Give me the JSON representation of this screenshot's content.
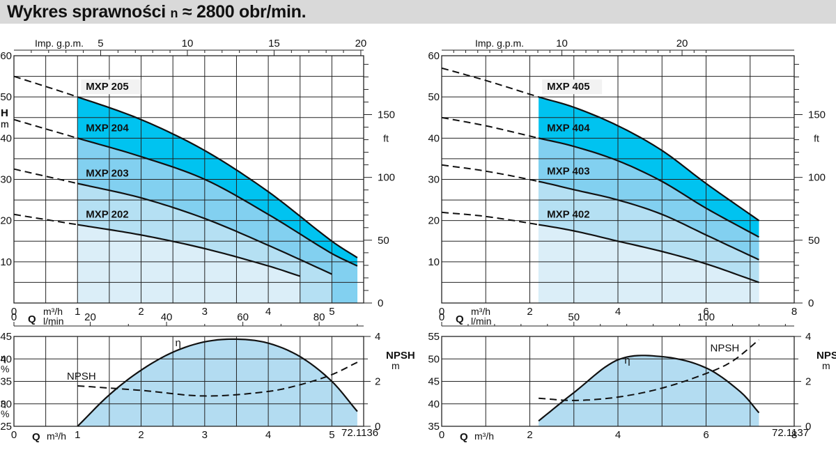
{
  "title": {
    "main": "Wykres sprawności",
    "n": "n",
    "rest": "≈ 2800 obr/min."
  },
  "colors": {
    "band_light": "#dbeef8",
    "band_2": "#b5e0f3",
    "band_3": "#82d0f0",
    "band_top": "#00c3f0",
    "eff_fill": "#b3dcf1",
    "grid": "#222222"
  },
  "chart_data": [
    {
      "id": "left_head",
      "type": "area",
      "series_kind": "head",
      "x_label": "Q",
      "x_unit": "m³/h",
      "xlim": [
        0,
        5.5
      ],
      "x_ticks": [
        0,
        1,
        2,
        3,
        4,
        5
      ],
      "x_grid": 0.5,
      "y_label": "H",
      "y_unit": "m",
      "ylim": [
        0,
        60
      ],
      "y_ticks": [
        10,
        20,
        30,
        40,
        50,
        60
      ],
      "y_tick_labels": [
        "10",
        "20",
        "30",
        "40",
        "50",
        "60"
      ],
      "y_grid": 5,
      "right_unit": "ft",
      "right_ticks": [
        0,
        50,
        100,
        150
      ],
      "top_unit": "Imp. g.p.m.",
      "top_ticks": [
        5,
        10,
        15,
        20
      ],
      "lpm_unit": "l/min",
      "lpm_ticks": [
        0,
        20,
        40,
        60,
        80
      ],
      "range_start": 1.0,
      "series": [
        {
          "name": "MXP 202",
          "x_end": 4.5,
          "points": [
            [
              0,
              21.5
            ],
            [
              1,
              19
            ],
            [
              2,
              16.5
            ],
            [
              3,
              13.2
            ],
            [
              4,
              9
            ],
            [
              4.5,
              6.5
            ]
          ]
        },
        {
          "name": "MXP 203",
          "x_end": 5.0,
          "points": [
            [
              0,
              32.5
            ],
            [
              1,
              29
            ],
            [
              2,
              25.5
            ],
            [
              3,
              20.5
            ],
            [
              4,
              14
            ],
            [
              5,
              7
            ]
          ]
        },
        {
          "name": "MXP 204",
          "x_end": 5.4,
          "points": [
            [
              0,
              44.5
            ],
            [
              1,
              40
            ],
            [
              2,
              35.5
            ],
            [
              3,
              30
            ],
            [
              4,
              21.5
            ],
            [
              5,
              12
            ],
            [
              5.4,
              9
            ]
          ]
        },
        {
          "name": "MXP 205",
          "x_end": 5.4,
          "points": [
            [
              0,
              55
            ],
            [
              1,
              50
            ],
            [
              2,
              44.5
            ],
            [
              3,
              37
            ],
            [
              4,
              27
            ],
            [
              5,
              15
            ],
            [
              5.4,
              11
            ]
          ]
        }
      ]
    },
    {
      "id": "right_head",
      "type": "area",
      "series_kind": "head",
      "x_label": "Q",
      "x_unit": "m³/h",
      "xlim": [
        0,
        8
      ],
      "x_ticks": [
        0,
        2,
        4,
        6,
        8
      ],
      "x_grid": 1,
      "y_label": "H",
      "y_unit": "m",
      "ylim": [
        0,
        60
      ],
      "y_ticks": [
        10,
        20,
        30,
        40,
        50,
        60
      ],
      "y_tick_labels": [
        "10",
        "20",
        "30",
        "40",
        "50",
        "60"
      ],
      "y_grid": 5,
      "right_unit": "ft",
      "right_ticks": [
        0,
        50,
        100,
        150
      ],
      "top_unit": "Imp. g.p.m.",
      "top_ticks": [
        10,
        20
      ],
      "lpm_unit": "l/min",
      "lpm_ticks": [
        0,
        50,
        100
      ],
      "range_start": 2.2,
      "series": [
        {
          "name": "MXP 402",
          "x_end": 7.2,
          "points": [
            [
              0,
              22
            ],
            [
              1,
              21
            ],
            [
              2.2,
              19
            ],
            [
              3,
              17.5
            ],
            [
              4,
              15
            ],
            [
              5,
              12.5
            ],
            [
              6,
              9.5
            ],
            [
              7.2,
              5
            ]
          ]
        },
        {
          "name": "MXP 403",
          "x_end": 7.2,
          "points": [
            [
              0,
              33.5
            ],
            [
              1,
              32
            ],
            [
              2.2,
              29.5
            ],
            [
              3,
              27.5
            ],
            [
              4,
              25
            ],
            [
              5,
              21.5
            ],
            [
              6,
              16.5
            ],
            [
              7.2,
              10.5
            ]
          ]
        },
        {
          "name": "MXP 404",
          "x_end": 7.2,
          "points": [
            [
              0,
              45
            ],
            [
              1,
              43
            ],
            [
              2.2,
              40
            ],
            [
              3,
              38
            ],
            [
              4,
              34.5
            ],
            [
              5,
              29.5
            ],
            [
              6,
              23
            ],
            [
              7.2,
              16
            ]
          ]
        },
        {
          "name": "MXP 405",
          "x_end": 7.2,
          "points": [
            [
              0,
              57
            ],
            [
              1,
              54
            ],
            [
              2.2,
              50
            ],
            [
              3,
              47.5
            ],
            [
              4,
              43
            ],
            [
              5,
              37
            ],
            [
              6,
              29
            ],
            [
              7.2,
              20
            ]
          ]
        }
      ]
    },
    {
      "id": "left_eff",
      "type": "area",
      "series_kind": "efficiency",
      "x_label": "Q",
      "x_unit": "m³/h",
      "xlim": [
        0,
        5.5
      ],
      "x_ticks": [
        0,
        1,
        2,
        3,
        4,
        5
      ],
      "x_grid": 0.5,
      "y_label": "η",
      "y_unit": "%",
      "ylim": [
        25,
        45
      ],
      "y_ticks": [
        25,
        30,
        35,
        40,
        45
      ],
      "y_grid": 5,
      "npsh_label": "NPSH",
      "npsh_unit": "m",
      "npsh_lim": [
        0,
        4
      ],
      "npsh_ticks": [
        0,
        2,
        4
      ],
      "code": "72.1136",
      "efficiency": {
        "name": "η",
        "points": [
          [
            1,
            25
          ],
          [
            1.5,
            32
          ],
          [
            2,
            37.5
          ],
          [
            2.5,
            41.5
          ],
          [
            3,
            43.8
          ],
          [
            3.5,
            44.4
          ],
          [
            4,
            43.5
          ],
          [
            4.5,
            40.5
          ],
          [
            5,
            35
          ],
          [
            5.4,
            28.3
          ]
        ]
      },
      "npsh": {
        "name": "NPSH",
        "points": [
          [
            1,
            1.8
          ],
          [
            2,
            1.6
          ],
          [
            3,
            1.35
          ],
          [
            4,
            1.55
          ],
          [
            4.5,
            1.85
          ],
          [
            5,
            2.3
          ],
          [
            5.4,
            2.85
          ]
        ]
      }
    },
    {
      "id": "right_eff",
      "type": "area",
      "series_kind": "efficiency",
      "x_label": "Q",
      "x_unit": "m³/h",
      "xlim": [
        0,
        8
      ],
      "x_ticks": [
        0,
        2,
        4,
        6,
        8
      ],
      "x_grid": 1,
      "y_label": "η",
      "y_unit": "%",
      "ylim": [
        35,
        55
      ],
      "y_ticks": [
        35,
        40,
        45,
        50,
        55
      ],
      "y_grid": 5,
      "npsh_label": "NPSH",
      "npsh_unit": "m",
      "npsh_lim": [
        0,
        4
      ],
      "npsh_ticks": [
        0,
        2,
        4
      ],
      "code": "72.1137",
      "efficiency": {
        "name": "η",
        "points": [
          [
            2.2,
            36.2
          ],
          [
            3,
            42.5
          ],
          [
            4,
            49.8
          ],
          [
            5,
            50.5
          ],
          [
            6,
            48
          ],
          [
            6.8,
            42.5
          ],
          [
            7.2,
            38
          ]
        ]
      },
      "npsh": {
        "name": "NPSH",
        "points": [
          [
            2.2,
            1.25
          ],
          [
            3,
            1.15
          ],
          [
            4,
            1.3
          ],
          [
            5,
            1.7
          ],
          [
            6,
            2.35
          ],
          [
            6.6,
            2.9
          ],
          [
            7.2,
            3.85
          ]
        ]
      }
    }
  ]
}
